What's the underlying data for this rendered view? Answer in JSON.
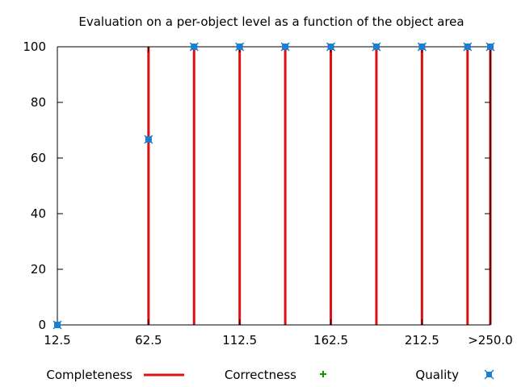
{
  "chart_data": {
    "type": "line",
    "title": "Evaluation on a per-object level as a function of the object area",
    "xlabel": "",
    "ylabel": "",
    "xlim": [
      12.5,
      250
    ],
    "ylim": [
      0,
      100
    ],
    "x_ticks": [
      {
        "value": 12.5,
        "label": "12.5"
      },
      {
        "value": 62.5,
        "label": "62.5"
      },
      {
        "value": 112.5,
        "label": "112.5"
      },
      {
        "value": 162.5,
        "label": "162.5"
      },
      {
        "value": 212.5,
        "label": "212.5"
      },
      {
        "value": 250,
        "label": ">250.0"
      }
    ],
    "y_ticks": [
      0,
      20,
      40,
      60,
      80,
      100
    ],
    "grid": false,
    "legend_position": "bottom",
    "x": [
      12.5,
      62.5,
      87.5,
      112.5,
      137.5,
      162.5,
      187.5,
      212.5,
      237.5,
      250
    ],
    "series": [
      {
        "name": "Completeness",
        "style": "impulses",
        "color": "#dd1111",
        "values": [
          0,
          100,
          100,
          100,
          100,
          100,
          100,
          100,
          100,
          100
        ]
      },
      {
        "name": "Correctness",
        "style": "points-plus",
        "color": "#009900",
        "values": [
          0,
          66.7,
          100,
          100,
          100,
          100,
          100,
          100,
          100,
          100
        ]
      },
      {
        "name": "Quality",
        "style": "points-square",
        "color": "#1a7fd0",
        "values": [
          0,
          66.7,
          100,
          100,
          100,
          100,
          100,
          100,
          100,
          100
        ]
      }
    ]
  }
}
